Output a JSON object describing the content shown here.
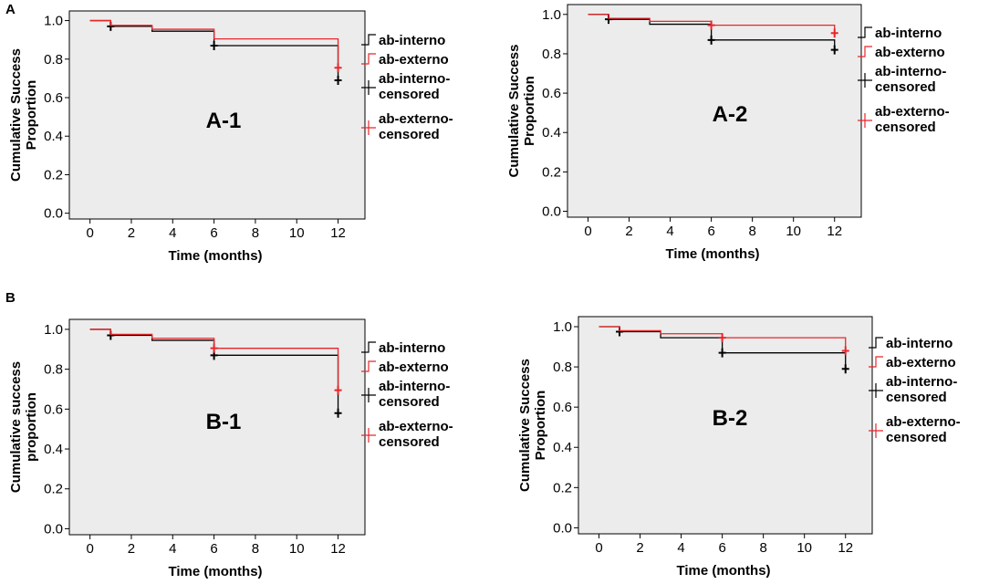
{
  "figure": {
    "sections": [
      "A",
      "B"
    ]
  },
  "colors": {
    "interno": "#000000",
    "externo": "#e8262a",
    "plot_bg": "#ececec",
    "axis": "#000000"
  },
  "chart_data": [
    {
      "type": "line",
      "title": "A-1",
      "section": "A",
      "xlabel": "Time (months)",
      "ylabel_lines": [
        "Cumulative Success",
        "Proportion"
      ],
      "xlim": [
        -1,
        13.3
      ],
      "ylim": [
        -0.03,
        1.05
      ],
      "xticks": [
        0,
        2,
        4,
        6,
        8,
        10,
        12
      ],
      "xtick_labels": [
        "0",
        "2",
        "4",
        "6",
        "8",
        "10",
        "12"
      ],
      "yticks": [
        0.0,
        0.2,
        0.4,
        0.6,
        0.8,
        1.0
      ],
      "ytick_labels": [
        "0.0",
        "0.2",
        "0.4",
        "0.6",
        "0.8",
        "1.0"
      ],
      "legend": [
        "ab-interno",
        "ab-externo",
        "ab-interno-censored",
        "ab-externo-censored"
      ],
      "legend_display": [
        [
          "ab-interno"
        ],
        [
          "ab-externo"
        ],
        [
          "ab-interno-",
          "censored"
        ],
        [
          "ab-externo-",
          "censored"
        ]
      ],
      "series": [
        {
          "name": "ab-interno",
          "color": "#000000",
          "steps": [
            [
              0,
              1.0
            ],
            [
              1,
              0.97
            ],
            [
              3,
              0.945
            ],
            [
              6,
              0.87
            ],
            [
              12,
              0.69
            ]
          ],
          "censored": [
            [
              1,
              0.97
            ],
            [
              6,
              0.87
            ],
            [
              12,
              0.69
            ]
          ]
        },
        {
          "name": "ab-externo",
          "color": "#e8262a",
          "steps": [
            [
              0,
              1.0
            ],
            [
              1,
              0.975
            ],
            [
              3,
              0.955
            ],
            [
              6,
              0.905
            ],
            [
              12,
              0.755
            ]
          ],
          "censored": [
            [
              12,
              0.755
            ]
          ]
        }
      ]
    },
    {
      "type": "line",
      "title": "A-2",
      "section": "A",
      "xlabel": "Time (months)",
      "ylabel_lines": [
        "Cumulative Success",
        "Proportion"
      ],
      "xlim": [
        -1,
        13.3
      ],
      "ylim": [
        -0.03,
        1.05
      ],
      "xticks": [
        0,
        2,
        4,
        6,
        8,
        10,
        12
      ],
      "xtick_labels": [
        "0",
        "2",
        "4",
        "6",
        "8",
        "10",
        "12"
      ],
      "yticks": [
        0.0,
        0.2,
        0.4,
        0.6,
        0.8,
        1.0
      ],
      "ytick_labels": [
        "0.0",
        "0.2",
        "0.4",
        "0.6",
        "0.8",
        "1.0"
      ],
      "legend": [
        "ab-interno",
        "ab-externo",
        "ab-interno-censored",
        "ab-externo-censored"
      ],
      "legend_display": [
        [
          "ab-interno"
        ],
        [
          "ab-externo"
        ],
        [
          "ab-interno-",
          "censored"
        ],
        [
          "ab-externo-",
          "censored"
        ]
      ],
      "series": [
        {
          "name": "ab-interno",
          "color": "#000000",
          "steps": [
            [
              0,
              1.0
            ],
            [
              1,
              0.975
            ],
            [
              3,
              0.95
            ],
            [
              6,
              0.87
            ],
            [
              12,
              0.82
            ]
          ],
          "censored": [
            [
              1,
              0.975
            ],
            [
              6,
              0.87
            ],
            [
              12,
              0.82
            ]
          ]
        },
        {
          "name": "ab-externo",
          "color": "#e8262a",
          "steps": [
            [
              0,
              1.0
            ],
            [
              1,
              0.98
            ],
            [
              3,
              0.965
            ],
            [
              6,
              0.945
            ],
            [
              12,
              0.905
            ]
          ],
          "censored": [
            [
              6,
              0.945
            ],
            [
              12,
              0.905
            ]
          ]
        }
      ]
    },
    {
      "type": "line",
      "title": "B-1",
      "section": "B",
      "xlabel": "Time (months)",
      "ylabel_lines": [
        "Cumulative success",
        "proportion"
      ],
      "xlim": [
        -1,
        13.3
      ],
      "ylim": [
        -0.03,
        1.05
      ],
      "xticks": [
        0,
        2,
        4,
        6,
        8,
        10,
        12
      ],
      "xtick_labels": [
        "0",
        "2",
        "4",
        "6",
        "8",
        "10",
        "12"
      ],
      "yticks": [
        0.0,
        0.2,
        0.4,
        0.6,
        0.8,
        1.0
      ],
      "ytick_labels": [
        "0.0",
        "0.2",
        "0.4",
        "0.6",
        "0.8",
        "1.0"
      ],
      "legend": [
        "ab-interno",
        "ab-externo",
        "ab-interno-censored",
        "ab-externo-censored"
      ],
      "legend_display": [
        [
          "ab-interno"
        ],
        [
          "ab-externo"
        ],
        [
          "ab-interno-",
          "censored"
        ],
        [
          "ab-externo-",
          "censored"
        ]
      ],
      "series": [
        {
          "name": "ab-interno",
          "color": "#000000",
          "steps": [
            [
              0,
              1.0
            ],
            [
              1,
              0.97
            ],
            [
              3,
              0.945
            ],
            [
              6,
              0.87
            ],
            [
              12,
              0.58
            ]
          ],
          "censored": [
            [
              1,
              0.97
            ],
            [
              6,
              0.87
            ],
            [
              12,
              0.58
            ]
          ]
        },
        {
          "name": "ab-externo",
          "color": "#e8262a",
          "steps": [
            [
              0,
              1.0
            ],
            [
              1,
              0.975
            ],
            [
              3,
              0.955
            ],
            [
              6,
              0.905
            ],
            [
              12,
              0.695
            ]
          ],
          "censored": [
            [
              6,
              0.905
            ],
            [
              12,
              0.695
            ]
          ]
        }
      ]
    },
    {
      "type": "line",
      "title": "B-2",
      "section": "B",
      "xlabel": "Time (months)",
      "ylabel_lines": [
        "Cumulative Success",
        "Proportion"
      ],
      "xlim": [
        -1,
        13.3
      ],
      "ylim": [
        -0.03,
        1.05
      ],
      "xticks": [
        0,
        2,
        4,
        6,
        8,
        10,
        12
      ],
      "xtick_labels": [
        "0",
        "2",
        "4",
        "6",
        "8",
        "10",
        "12"
      ],
      "yticks": [
        0.0,
        0.2,
        0.4,
        0.6,
        0.8,
        1.0
      ],
      "ytick_labels": [
        "0.0",
        "0.2",
        "0.4",
        "0.6",
        "0.8",
        "1.0"
      ],
      "legend": [
        "ab-interno",
        "ab-externo",
        "ab-interno-censored",
        "ab-externo-censored"
      ],
      "legend_display": [
        [
          "ab-interno"
        ],
        [
          "ab-externo"
        ],
        [
          "ab-interno-",
          "censored"
        ],
        [
          "ab-externo-",
          "censored"
        ]
      ],
      "series": [
        {
          "name": "ab-interno",
          "color": "#000000",
          "steps": [
            [
              0,
              1.0
            ],
            [
              1,
              0.975
            ],
            [
              3,
              0.945
            ],
            [
              6,
              0.87
            ],
            [
              12,
              0.79
            ]
          ],
          "censored": [
            [
              1,
              0.975
            ],
            [
              6,
              0.87
            ],
            [
              12,
              0.79
            ]
          ]
        },
        {
          "name": "ab-externo",
          "color": "#e8262a",
          "steps": [
            [
              0,
              1.0
            ],
            [
              1,
              0.98
            ],
            [
              3,
              0.965
            ],
            [
              6,
              0.945
            ],
            [
              12,
              0.88
            ]
          ],
          "censored": [
            [
              6,
              0.945
            ],
            [
              12,
              0.88
            ]
          ]
        }
      ]
    }
  ]
}
